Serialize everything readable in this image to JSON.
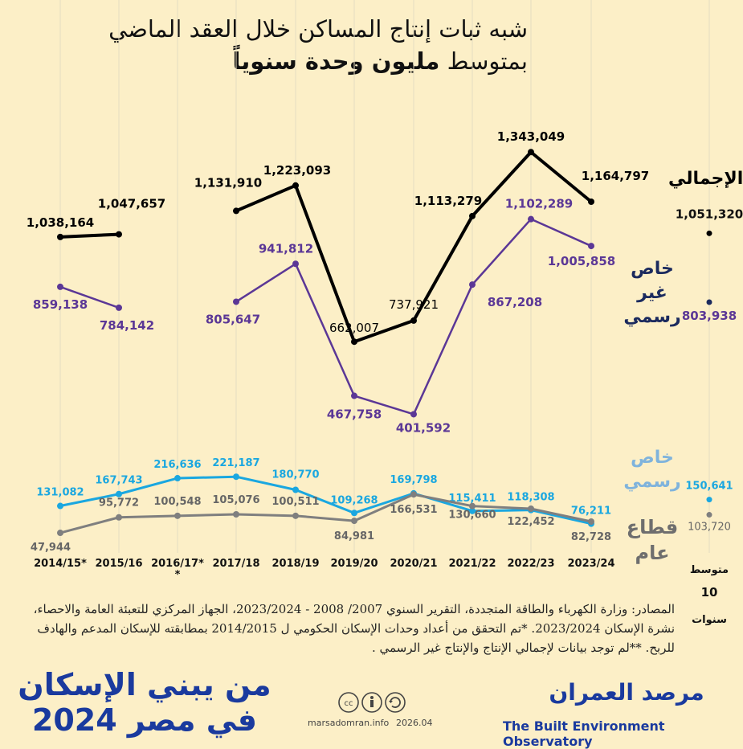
{
  "header": {
    "title_line1": "شبه ثبات إنتاج المساكن خلال العقد الماضي",
    "title_line2_prefix": "بمتوسط ",
    "title_line2_bold": "مليون وحدة سنوياً"
  },
  "chart_data": {
    "type": "line",
    "categories": [
      "2014/15*",
      "2015/16",
      "2016/17*",
      "2017/18",
      "2018/19",
      "2019/20",
      "2020/21",
      "2021/22",
      "2022/23",
      "2023/24"
    ],
    "category_note": "*",
    "series": [
      {
        "name": "الإجمالي",
        "color": "#000000",
        "values": [
          1038164,
          1047657,
          null,
          1131910,
          1223093,
          662007,
          737921,
          1113279,
          1343049,
          1164797
        ],
        "labels": [
          "1,038,164",
          "1,047,657",
          "",
          "1,131,910",
          "1,223,093",
          "662,007",
          "737,921",
          "1,113,279",
          "1,343,049",
          "1,164,797"
        ],
        "avg": 1051320,
        "avg_label": "1,051,320"
      },
      {
        "name": "خاص غير رسمي",
        "color": "#5b3796",
        "values": [
          859138,
          784142,
          null,
          805647,
          941812,
          467758,
          401592,
          867208,
          1102289,
          1005858
        ],
        "labels": [
          "859,138",
          "784,142",
          "",
          "805,647",
          "941,812",
          "467,758",
          "401,592",
          "867,208",
          "1,102,289",
          "1,005,858"
        ],
        "avg": 803938,
        "avg_label": "803,938"
      },
      {
        "name": "خاص رسمي",
        "color": "#1aa7e0",
        "values": [
          131082,
          167743,
          216636,
          221187,
          180770,
          109268,
          169798,
          115411,
          118308,
          76211
        ],
        "labels": [
          "131,082",
          "167,743",
          "216,636",
          "221,187",
          "180,770",
          "109,268",
          "169,798",
          "115,411",
          "118,308",
          "76,211"
        ],
        "avg": 150641,
        "avg_label": "150,641"
      },
      {
        "name": "قطاع عام",
        "color": "#7f7f7f",
        "values": [
          47944,
          95772,
          100548,
          105076,
          100511,
          84981,
          166531,
          130660,
          122452,
          82728
        ],
        "labels": [
          "47,944",
          "95,772",
          "100,548",
          "105,076",
          "100,511",
          "84,981",
          "166,531",
          "130,660",
          "122,452",
          "82,728"
        ],
        "avg": 103720,
        "avg_label": "103,720"
      }
    ],
    "avg_column_label": [
      "متوسط",
      "10",
      "سنوات"
    ],
    "legend_labels": {
      "total": "الإجمالي",
      "informal": [
        "خاص",
        "غير",
        "رسمي"
      ],
      "formal": [
        "خاص",
        "رسمي"
      ],
      "public": [
        "قطاع",
        "عام"
      ]
    }
  },
  "sources": "المصادر: وزارة الكهرباء والطاقة المتجددة، التقرير السنوي 2007/ 2008 - 2023/2024، الجهاز المركزي للتعبئة العامة والاحصاء، نشرة الإسكان 2023/2024. *تم التحقق من أعداد وحدات الإسكان الحكومي ل 2014/2015 بمطابقته للإسكان المدعم والهادف للربح. **لم توجد بيانات لإجمالي الإنتاج والإنتاج غير الرسمي .",
  "branding": {
    "campaign_line1": "من يبني الإسكان",
    "campaign_line2": "في مصر 2024",
    "website": "marsadomran.info",
    "date": "2026.04",
    "observatory_ar": "مرصد العمران",
    "observatory_en": "The Built Environment Observatory"
  }
}
